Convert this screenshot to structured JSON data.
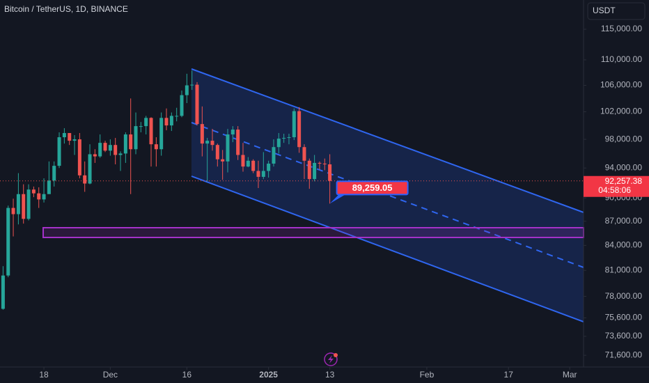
{
  "chart_data": {
    "type": "candlestick",
    "title": "Bitcoin / TetherUS, 1D, BINANCE",
    "currency": "USDT",
    "log_scale": true,
    "up_color": "#26a69a",
    "down_color": "#ef5350",
    "x": [
      -8,
      -7,
      -6,
      -5,
      -4,
      -3,
      -2,
      -1,
      0,
      1,
      2,
      3,
      4,
      5,
      6,
      7,
      8,
      9,
      10,
      11,
      12,
      13,
      14,
      15,
      16,
      17,
      18,
      19,
      20,
      21,
      22,
      23,
      24,
      25,
      26,
      27,
      28,
      29,
      30,
      31,
      32,
      33,
      34,
      35,
      36,
      37,
      38,
      39,
      40,
      41,
      42,
      43,
      44,
      45,
      46,
      47,
      48,
      49,
      50,
      51,
      52,
      53,
      54,
      55,
      56
    ],
    "open": [
      76600,
      80400,
      88700,
      87900,
      90500,
      87300,
      91100,
      90600,
      89800,
      90500,
      92300,
      94300,
      98300,
      98900,
      97800,
      98000,
      93000,
      91900,
      95900,
      95600,
      97500,
      96400,
      97200,
      95800,
      96000,
      98700,
      96600,
      99900,
      99900,
      101100,
      97300,
      96600,
      101100,
      100000,
      101400,
      101400,
      104500,
      106000,
      106100,
      100200,
      97400,
      97800,
      97200,
      95200,
      94900,
      98700,
      99400,
      95800,
      94200,
      95000,
      93600,
      92800,
      93600,
      94600,
      96900,
      98100,
      98200,
      98300,
      102100,
      96900,
      95000,
      92500,
      94700,
      94600,
      94500
    ],
    "high": [
      81500,
      89000,
      89900,
      93300,
      91800,
      91800,
      91500,
      91400,
      92600,
      94900,
      94900,
      99000,
      99600,
      98900,
      98600,
      98900,
      94900,
      97300,
      96600,
      98700,
      97800,
      98000,
      98200,
      96300,
      99000,
      104000,
      101900,
      100500,
      101400,
      101200,
      98300,
      101900,
      102500,
      101900,
      102600,
      105200,
      107800,
      108300,
      106500,
      102800,
      98200,
      99500,
      97400,
      96500,
      99500,
      99900,
      99900,
      97500,
      95500,
      95200,
      95000,
      96200,
      95000,
      98000,
      98900,
      98800,
      98800,
      102500,
      102700,
      97300,
      95300,
      95800,
      94900,
      95300,
      95900
    ],
    "low": [
      76500,
      80200,
      85100,
      86600,
      86700,
      87100,
      90100,
      88700,
      89400,
      90900,
      91500,
      94000,
      97400,
      97200,
      95800,
      92600,
      90800,
      91800,
      94700,
      95400,
      96200,
      95700,
      94500,
      93600,
      94700,
      90500,
      95900,
      99000,
      98700,
      94200,
      94200,
      95700,
      99300,
      99200,
      100600,
      101200,
      103300,
      105300,
      100000,
      95600,
      92200,
      96400,
      94200,
      92400,
      93400,
      97600,
      95100,
      93500,
      94100,
      93300,
      91300,
      92500,
      92700,
      94200,
      96000,
      97500,
      97300,
      97900,
      96100,
      92500,
      91200,
      92200,
      93800,
      93700,
      89259.05
    ],
    "close": [
      80400,
      88700,
      87900,
      90500,
      87300,
      91100,
      90600,
      89800,
      90500,
      92300,
      94300,
      98300,
      98900,
      97800,
      98000,
      93000,
      91900,
      95900,
      95600,
      97500,
      96400,
      97200,
      95800,
      96000,
      98700,
      96600,
      99900,
      99900,
      101100,
      97300,
      96600,
      101100,
      100000,
      101400,
      101400,
      104500,
      106000,
      106100,
      100200,
      97400,
      97800,
      97200,
      95200,
      94900,
      98700,
      99400,
      95800,
      94200,
      95000,
      93600,
      92800,
      93600,
      94600,
      96900,
      98100,
      98200,
      98300,
      102100,
      96900,
      95000,
      92500,
      94700,
      94600,
      94500,
      92257.38
    ],
    "last_price": {
      "value": 92257.38,
      "label": "92,257.38",
      "countdown": "04:58:06"
    },
    "annotation": {
      "value": 89259.05,
      "label": "89,259.05"
    },
    "xlim": [
      -8.6,
      105.7
    ],
    "xticks": [
      {
        "value": 0,
        "label": "18"
      },
      {
        "value": 13,
        "label": "Dec"
      },
      {
        "value": 28,
        "label": "16"
      },
      {
        "value": 44,
        "label": "2025"
      },
      {
        "value": 56,
        "label": "13"
      },
      {
        "value": 75,
        "label": "Feb"
      },
      {
        "value": 91,
        "label": "17"
      },
      {
        "value": 103,
        "label": "Mar"
      }
    ],
    "ylim": [
      70390,
      120000
    ],
    "yticks": [
      {
        "value": 115000,
        "label": "115,000.00"
      },
      {
        "value": 110000,
        "label": "110,000.00"
      },
      {
        "value": 106000,
        "label": "106,000.00"
      },
      {
        "value": 102000,
        "label": "102,000.00"
      },
      {
        "value": 98000,
        "label": "98,000.00"
      },
      {
        "value": 94000,
        "label": "94,000.00"
      },
      {
        "value": 90000,
        "label": "90,000.00"
      },
      {
        "value": 87000,
        "label": "87,000.00"
      },
      {
        "value": 84000,
        "label": "84,000.00"
      },
      {
        "value": 81000,
        "label": "81,000.00"
      },
      {
        "value": 78000,
        "label": "78,000.00"
      },
      {
        "value": 75600,
        "label": "75,600.00"
      },
      {
        "value": 73600,
        "label": "73,600.00"
      },
      {
        "value": 71600,
        "label": "71,600.00"
      }
    ]
  }
}
